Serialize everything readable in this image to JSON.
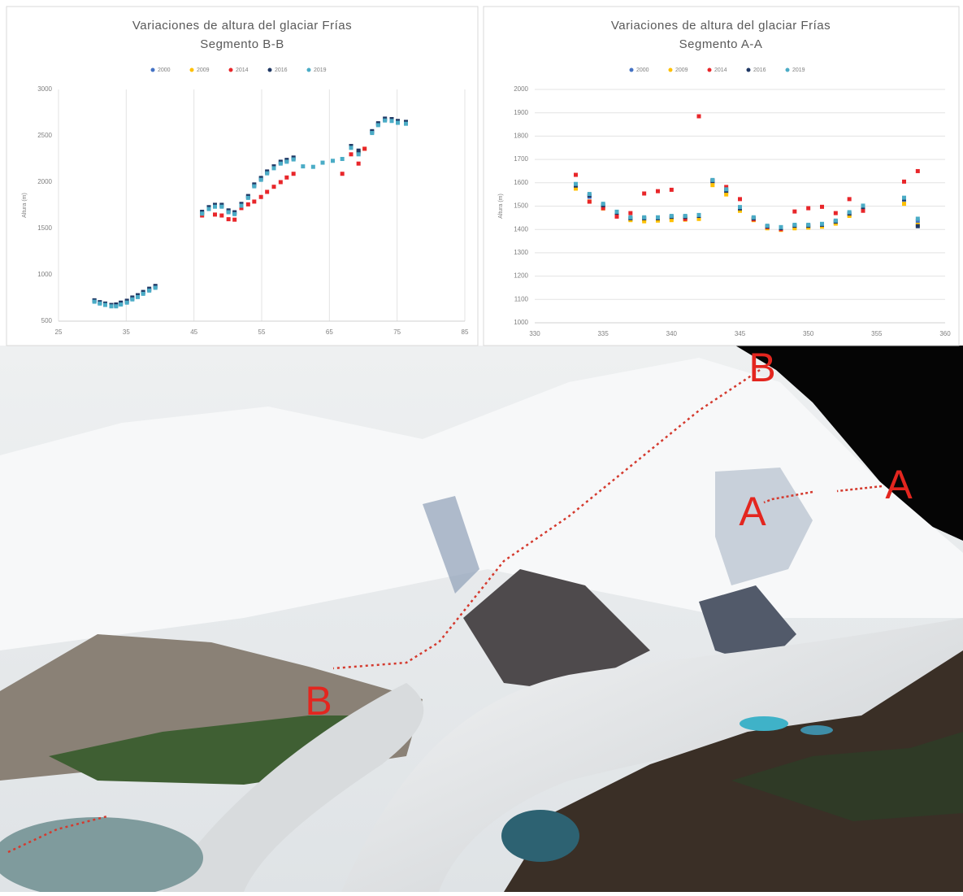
{
  "chart_data": [
    {
      "type": "scatter",
      "title": "Variaciones de altura del glaciar Frías",
      "subtitle": "Segmento B-B",
      "y_label": "Altura (m)",
      "grid": "x",
      "xlim": [
        25,
        85
      ],
      "xticks": [
        25,
        35,
        45,
        55,
        65,
        75,
        85
      ],
      "ylim": [
        500,
        3000
      ],
      "yticks": [
        500,
        1000,
        1500,
        2000,
        2500,
        3000
      ],
      "x": [
        30.3,
        31.1,
        31.9,
        32.8,
        33.5,
        34.2,
        35.1,
        35.9,
        36.7,
        37.5,
        38.4,
        39.3,
        46.2,
        47.2,
        48.1,
        49.1,
        50.1,
        51.0,
        52.0,
        53.0,
        53.9,
        54.9,
        55.8,
        56.8,
        57.8,
        58.7,
        59.7,
        61.1,
        62.6,
        64.0,
        65.5,
        66.9,
        68.2,
        69.3,
        70.2,
        71.3,
        72.2,
        73.2,
        74.2,
        75.1,
        76.3
      ],
      "series": [
        {
          "name": "2000",
          "color": "#4472c4",
          "values": [
            720,
            700,
            680,
            665,
            670,
            690,
            710,
            745,
            770,
            805,
            840,
            870,
            1670,
            1720,
            1745,
            1745,
            1685,
            1665,
            1755,
            1840,
            1965,
            2035,
            2105,
            2160,
            2210,
            2230,
            2255,
            null,
            null,
            null,
            null,
            null,
            2380,
            2320,
            null,
            2540,
            2625,
            2675,
            2670,
            2650,
            2640
          ]
        },
        {
          "name": "2009",
          "color": "#ffc000",
          "values": [
            null,
            null,
            null,
            null,
            null,
            null,
            null,
            null,
            null,
            null,
            null,
            null,
            1650,
            null,
            null,
            null,
            null,
            null,
            null,
            null,
            null,
            null,
            null,
            null,
            null,
            null,
            null,
            null,
            null,
            null,
            null,
            null,
            null,
            2330,
            2360,
            null,
            null,
            null,
            null,
            null,
            null
          ]
        },
        {
          "name": "2014",
          "color": "#e8262a",
          "values": [
            null,
            null,
            null,
            null,
            null,
            null,
            null,
            null,
            null,
            null,
            null,
            null,
            1640,
            null,
            1650,
            1640,
            1600,
            1595,
            1720,
            1760,
            1790,
            1840,
            1895,
            1950,
            2000,
            2050,
            2090,
            null,
            null,
            null,
            null,
            2090,
            2300,
            2200,
            2360,
            null,
            null,
            null,
            null,
            null,
            null
          ]
        },
        {
          "name": "2016",
          "color": "#203864",
          "values": [
            725,
            705,
            690,
            675,
            680,
            700,
            720,
            755,
            780,
            815,
            850,
            880,
            1680,
            1730,
            1755,
            1755,
            1695,
            1675,
            1765,
            1850,
            1975,
            2045,
            2115,
            2170,
            2220,
            2240,
            2265,
            null,
            null,
            null,
            null,
            null,
            2390,
            2340,
            null,
            2550,
            2635,
            2685,
            2680,
            2660,
            2650
          ]
        },
        {
          "name": "2019",
          "color": "#4bacc6",
          "values": [
            710,
            690,
            675,
            660,
            660,
            680,
            700,
            735,
            760,
            795,
            830,
            860,
            1660,
            1710,
            1735,
            1735,
            1675,
            1655,
            1745,
            1830,
            1955,
            2025,
            2095,
            2150,
            2200,
            2220,
            2245,
            2170,
            2165,
            2210,
            2230,
            2250,
            2370,
            2300,
            null,
            2530,
            2615,
            2665,
            2660,
            2640,
            2630
          ]
        }
      ]
    },
    {
      "type": "scatter",
      "title": "Variaciones de altura del glaciar Frías",
      "subtitle": "Segmento A-A",
      "y_label": "Altura (m)",
      "grid": "y",
      "xlim": [
        330,
        360
      ],
      "xticks": [
        330,
        335,
        340,
        345,
        350,
        355,
        360
      ],
      "ylim": [
        1000,
        2000
      ],
      "yticks": [
        1000,
        1100,
        1200,
        1300,
        1400,
        1500,
        1600,
        1700,
        1800,
        1900,
        2000
      ],
      "x": [
        333,
        334,
        335,
        336,
        337,
        338,
        339,
        340,
        341,
        342,
        343,
        344,
        345,
        346,
        347,
        348,
        349,
        350,
        351,
        352,
        353,
        354,
        357,
        358
      ],
      "series": [
        {
          "name": "2000",
          "color": "#4472c4",
          "values": [
            1582,
            1540,
            1498,
            1467,
            1443,
            1443,
            1443,
            1449,
            1449,
            1453,
            1603,
            1561,
            1484,
            1443,
            1408,
            1401,
            1411,
            1411,
            1415,
            1429,
            1463,
            1491,
            1526,
            1436
          ]
        },
        {
          "name": "2009",
          "color": "#ffc000",
          "values": [
            1575,
            1520,
            1490,
            1460,
            1440,
            1435,
            1438,
            1440,
            1442,
            1445,
            1590,
            1550,
            1480,
            1440,
            1405,
            1398,
            1405,
            1408,
            1412,
            1425,
            1458,
            1485,
            1510,
            1420
          ]
        },
        {
          "name": "2014",
          "color": "#e8262a",
          "values": [
            1634,
            1519,
            1491,
            1455,
            1470,
            1554,
            1564,
            1570,
            1445,
            1885,
            1610,
            1582,
            1530,
            1443,
            1410,
            1401,
            1477,
            1491,
            1497,
            1470,
            1530,
            1480,
            1605,
            1650
          ]
        },
        {
          "name": "2016",
          "color": "#203864",
          "values": [
            1588,
            1546,
            1504,
            1472,
            1448,
            1448,
            1448,
            1454,
            1454,
            1458,
            1608,
            1566,
            1490,
            1448,
            1413,
            1406,
            1416,
            1416,
            1420,
            1434,
            1468,
            1496,
            1531,
            1414
          ]
        },
        {
          "name": "2019",
          "color": "#4bacc6",
          "values": [
            1595,
            1552,
            1510,
            1476,
            1452,
            1452,
            1452,
            1458,
            1458,
            1462,
            1612,
            1572,
            1496,
            1452,
            1416,
            1410,
            1420,
            1420,
            1424,
            1438,
            1474,
            1502,
            1536,
            1446
          ]
        }
      ]
    }
  ],
  "image": {
    "labels": [
      "B",
      "A",
      "A",
      "B"
    ]
  }
}
